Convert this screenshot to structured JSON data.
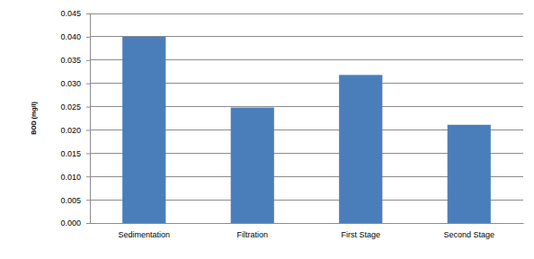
{
  "chart_data": {
    "type": "bar",
    "y_label": "BOD (mg/l)",
    "categories": [
      "Sedimentation",
      "Filtration",
      "First Stage",
      "Second Stage"
    ],
    "values": [
      0.04,
      0.0248,
      0.0318,
      0.0211
    ],
    "color": "#4a7ebb",
    "ylim": [
      0,
      0.045
    ],
    "yticks": [
      {
        "value": 0,
        "label": "0.000"
      },
      {
        "value": 0.005,
        "label": "0.005"
      },
      {
        "value": 0.01,
        "label": "0.010"
      },
      {
        "value": 0.015,
        "label": "0.015"
      },
      {
        "value": 0.02,
        "label": "0.020"
      },
      {
        "value": 0.025,
        "label": "0.025"
      },
      {
        "value": 0.03,
        "label": "0.030"
      },
      {
        "value": 0.035,
        "label": "0.035"
      },
      {
        "value": 0.04,
        "label": "0.040"
      },
      {
        "value": 0.045,
        "label": "0.045"
      }
    ],
    "grid": true
  }
}
